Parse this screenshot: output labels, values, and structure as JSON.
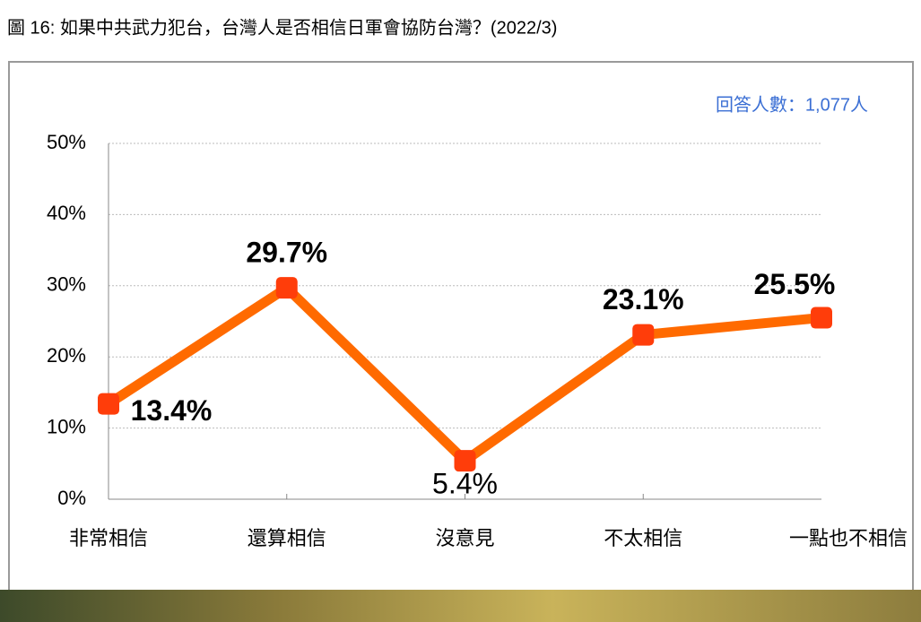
{
  "chart_data": {
    "type": "line",
    "title": "圖 16:  如果中共武力犯台，台灣人是否相信日軍會協防台灣？(2022/3)",
    "annotation": "回答人數：1,077人",
    "categories": [
      "非常相信",
      "還算相信",
      "沒意見",
      "不太相信",
      "一點也不相信"
    ],
    "series": [
      {
        "color": "#ff6a00",
        "marker_color": "#ff3d0a",
        "values": [
          13.4,
          29.7,
          5.4,
          23.1,
          25.5
        ],
        "value_labels": [
          "13.4%",
          "29.7%",
          "5.4%",
          "23.1%",
          "25.5%"
        ]
      }
    ],
    "ylim": [
      0,
      50
    ],
    "yticks": [
      {
        "value": 0,
        "label": "0%"
      },
      {
        "value": 10,
        "label": "10%"
      },
      {
        "value": 20,
        "label": "20%"
      },
      {
        "value": 30,
        "label": "30%"
      },
      {
        "value": 40,
        "label": "40%"
      },
      {
        "value": 50,
        "label": "50%"
      }
    ],
    "grid": true
  }
}
